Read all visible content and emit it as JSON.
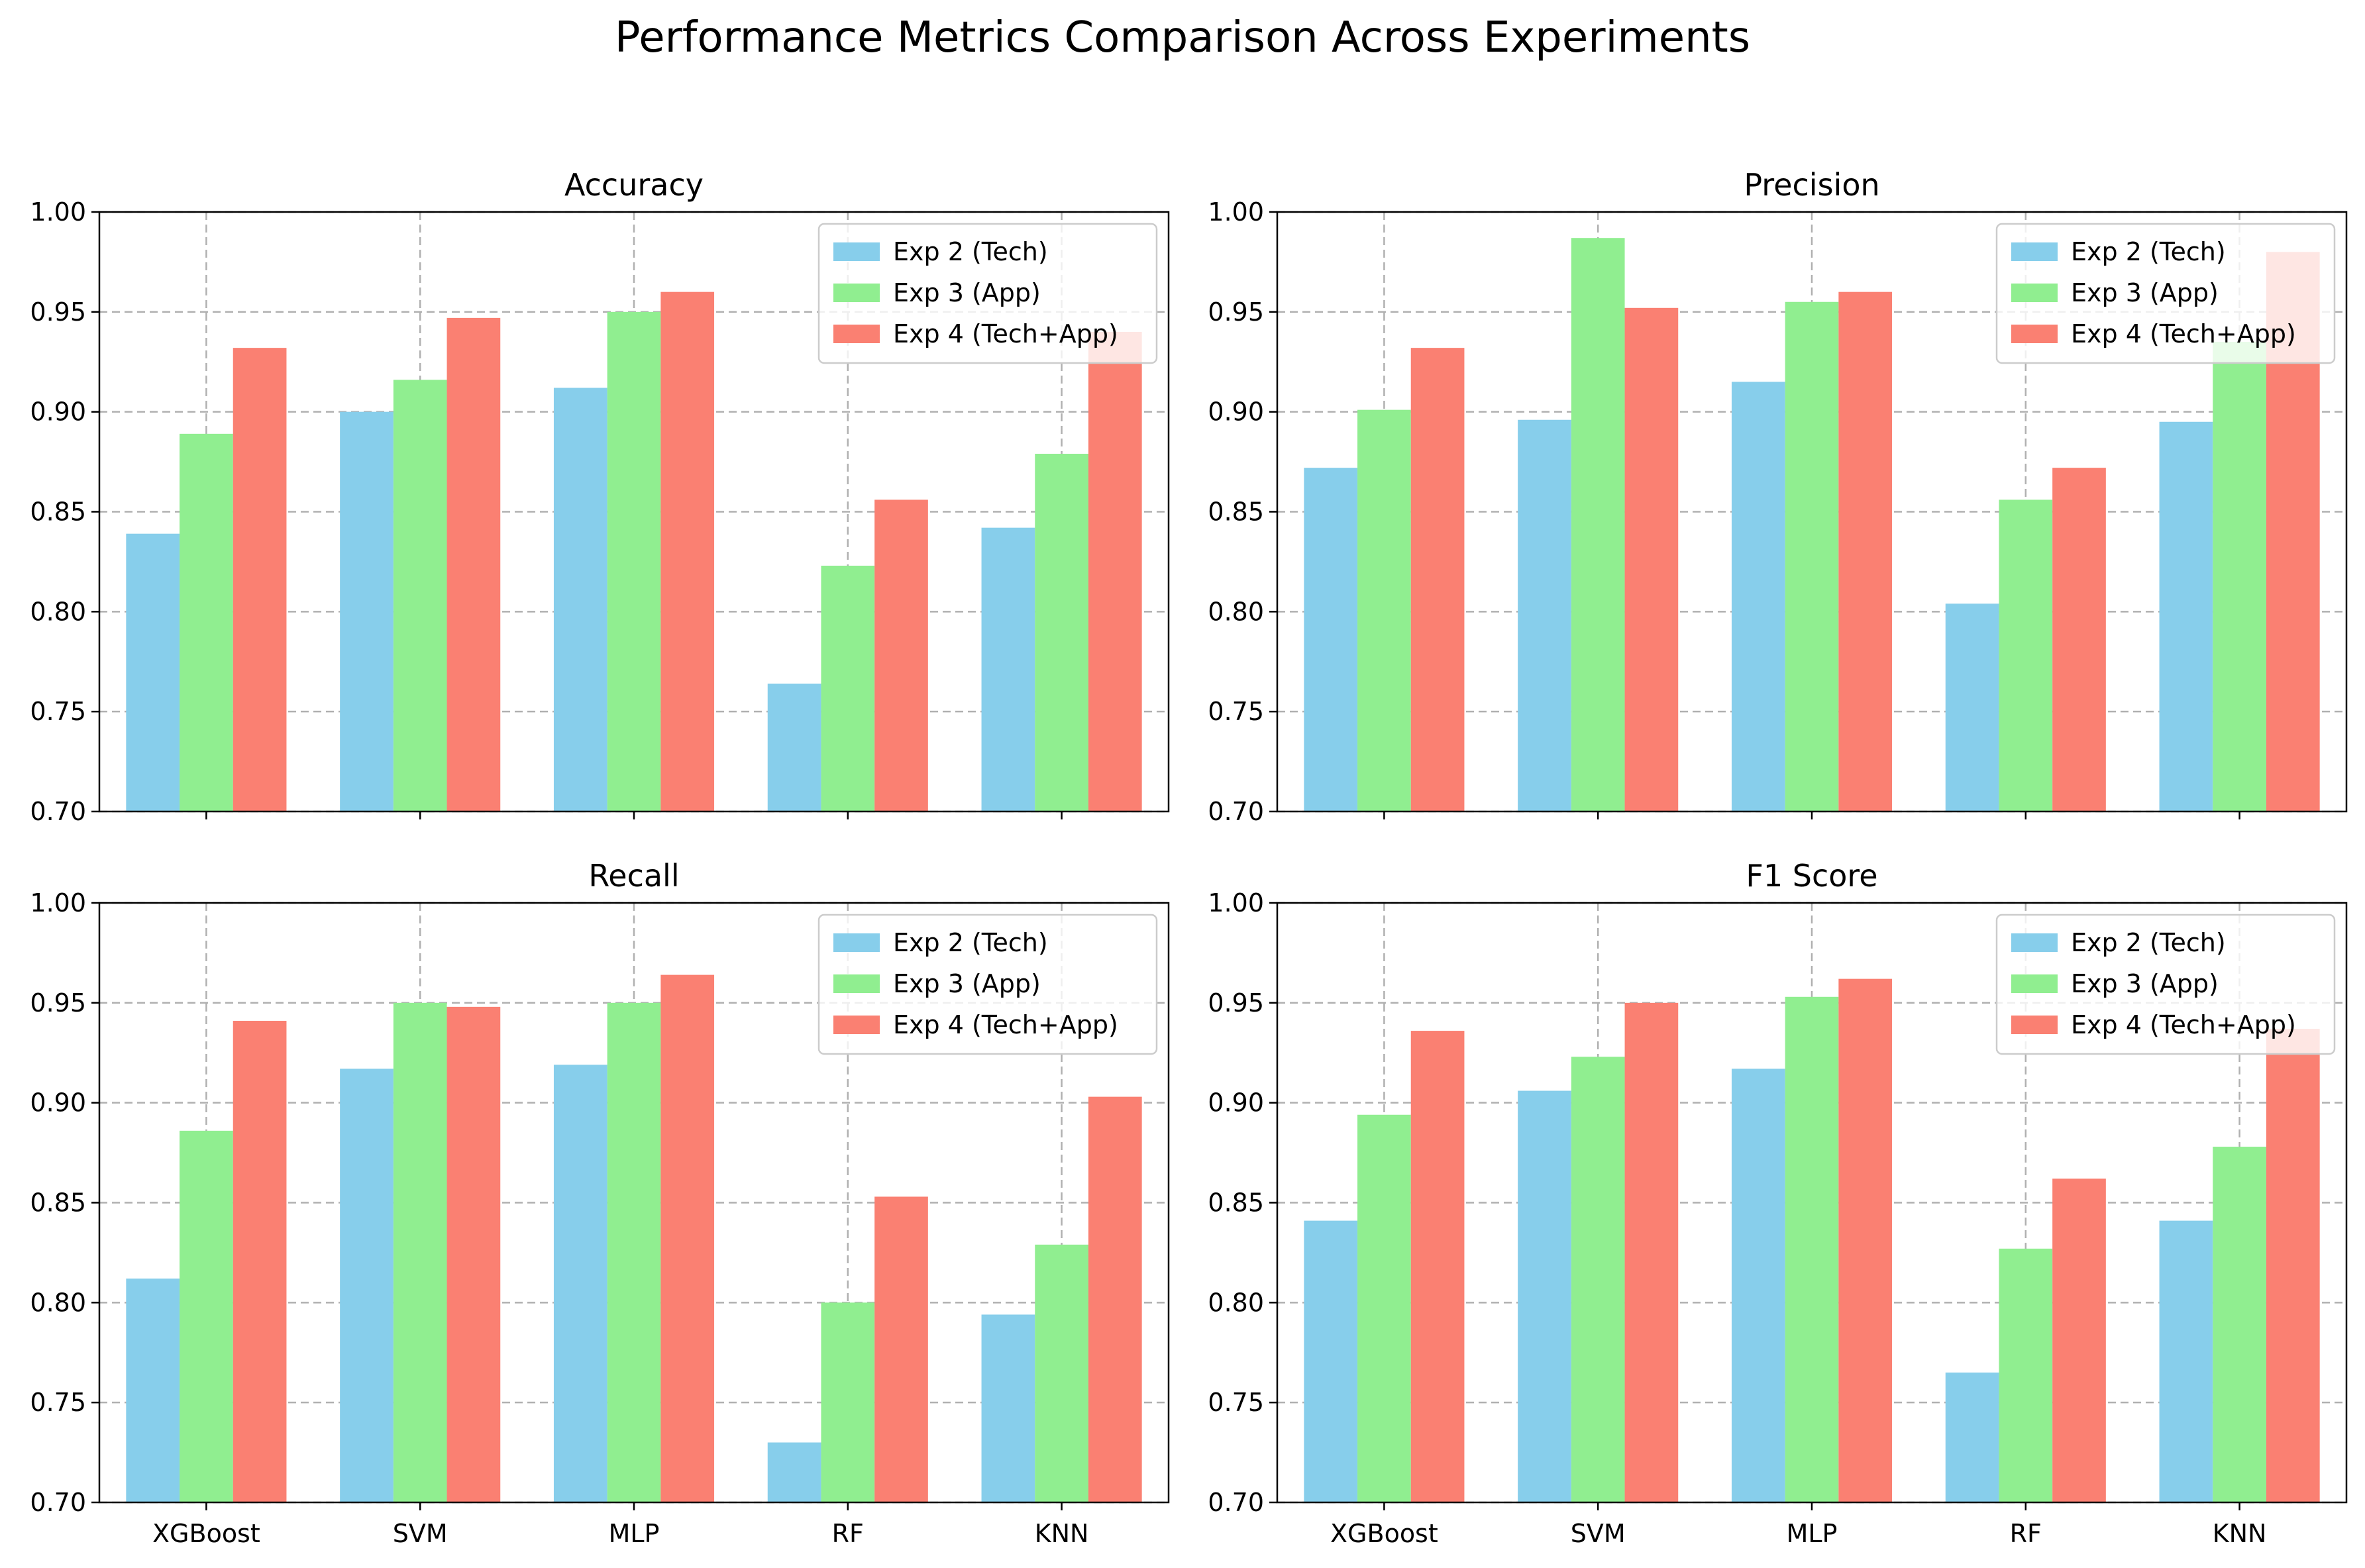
{
  "suptitle": "Performance Metrics Comparison Across Experiments",
  "colors": {
    "exp2": "#87ceeb",
    "exp3": "#90ee90",
    "exp4": "#fa8072"
  },
  "chart_data": [
    {
      "type": "bar",
      "title": "Accuracy",
      "categories": [
        "XGBoost",
        "SVM",
        "MLP",
        "RF",
        "KNN"
      ],
      "series": [
        {
          "name": "Exp 2 (Tech)",
          "values": [
            0.839,
            0.9,
            0.912,
            0.764,
            0.842
          ]
        },
        {
          "name": "Exp 3 (App)",
          "values": [
            0.889,
            0.916,
            0.95,
            0.823,
            0.879
          ]
        },
        {
          "name": "Exp 4 (Tech+App)",
          "values": [
            0.932,
            0.947,
            0.96,
            0.856,
            0.94
          ]
        }
      ],
      "ylim": [
        0.7,
        1.0
      ],
      "yticks": [
        "0.70",
        "0.75",
        "0.80",
        "0.85",
        "0.90",
        "0.95",
        "1.00"
      ],
      "grid": true,
      "legend": "upper-right",
      "show_xticklabels": false
    },
    {
      "type": "bar",
      "title": "Precision",
      "categories": [
        "XGBoost",
        "SVM",
        "MLP",
        "RF",
        "KNN"
      ],
      "series": [
        {
          "name": "Exp 2 (Tech)",
          "values": [
            0.872,
            0.896,
            0.915,
            0.804,
            0.895
          ]
        },
        {
          "name": "Exp 3 (App)",
          "values": [
            0.901,
            0.987,
            0.955,
            0.856,
            0.935
          ]
        },
        {
          "name": "Exp 4 (Tech+App)",
          "values": [
            0.932,
            0.952,
            0.96,
            0.872,
            0.98
          ]
        }
      ],
      "ylim": [
        0.7,
        1.0
      ],
      "yticks": [
        "0.70",
        "0.75",
        "0.80",
        "0.85",
        "0.90",
        "0.95",
        "1.00"
      ],
      "grid": true,
      "legend": "upper-right",
      "show_xticklabels": false
    },
    {
      "type": "bar",
      "title": "Recall",
      "categories": [
        "XGBoost",
        "SVM",
        "MLP",
        "RF",
        "KNN"
      ],
      "series": [
        {
          "name": "Exp 2 (Tech)",
          "values": [
            0.812,
            0.917,
            0.919,
            0.73,
            0.794
          ]
        },
        {
          "name": "Exp 3 (App)",
          "values": [
            0.886,
            0.95,
            0.95,
            0.8,
            0.829
          ]
        },
        {
          "name": "Exp 4 (Tech+App)",
          "values": [
            0.941,
            0.948,
            0.964,
            0.853,
            0.903
          ]
        }
      ],
      "ylim": [
        0.7,
        1.0
      ],
      "yticks": [
        "0.70",
        "0.75",
        "0.80",
        "0.85",
        "0.90",
        "0.95",
        "1.00"
      ],
      "grid": true,
      "legend": "upper-right",
      "show_xticklabels": true
    },
    {
      "type": "bar",
      "title": "F1 Score",
      "categories": [
        "XGBoost",
        "SVM",
        "MLP",
        "RF",
        "KNN"
      ],
      "series": [
        {
          "name": "Exp 2 (Tech)",
          "values": [
            0.841,
            0.906,
            0.917,
            0.765,
            0.841
          ]
        },
        {
          "name": "Exp 3 (App)",
          "values": [
            0.894,
            0.923,
            0.953,
            0.827,
            0.878
          ]
        },
        {
          "name": "Exp 4 (Tech+App)",
          "values": [
            0.936,
            0.95,
            0.962,
            0.862,
            0.937
          ]
        }
      ],
      "ylim": [
        0.7,
        1.0
      ],
      "yticks": [
        "0.70",
        "0.75",
        "0.80",
        "0.85",
        "0.90",
        "0.95",
        "1.00"
      ],
      "grid": true,
      "legend": "upper-right",
      "show_xticklabels": true
    }
  ]
}
